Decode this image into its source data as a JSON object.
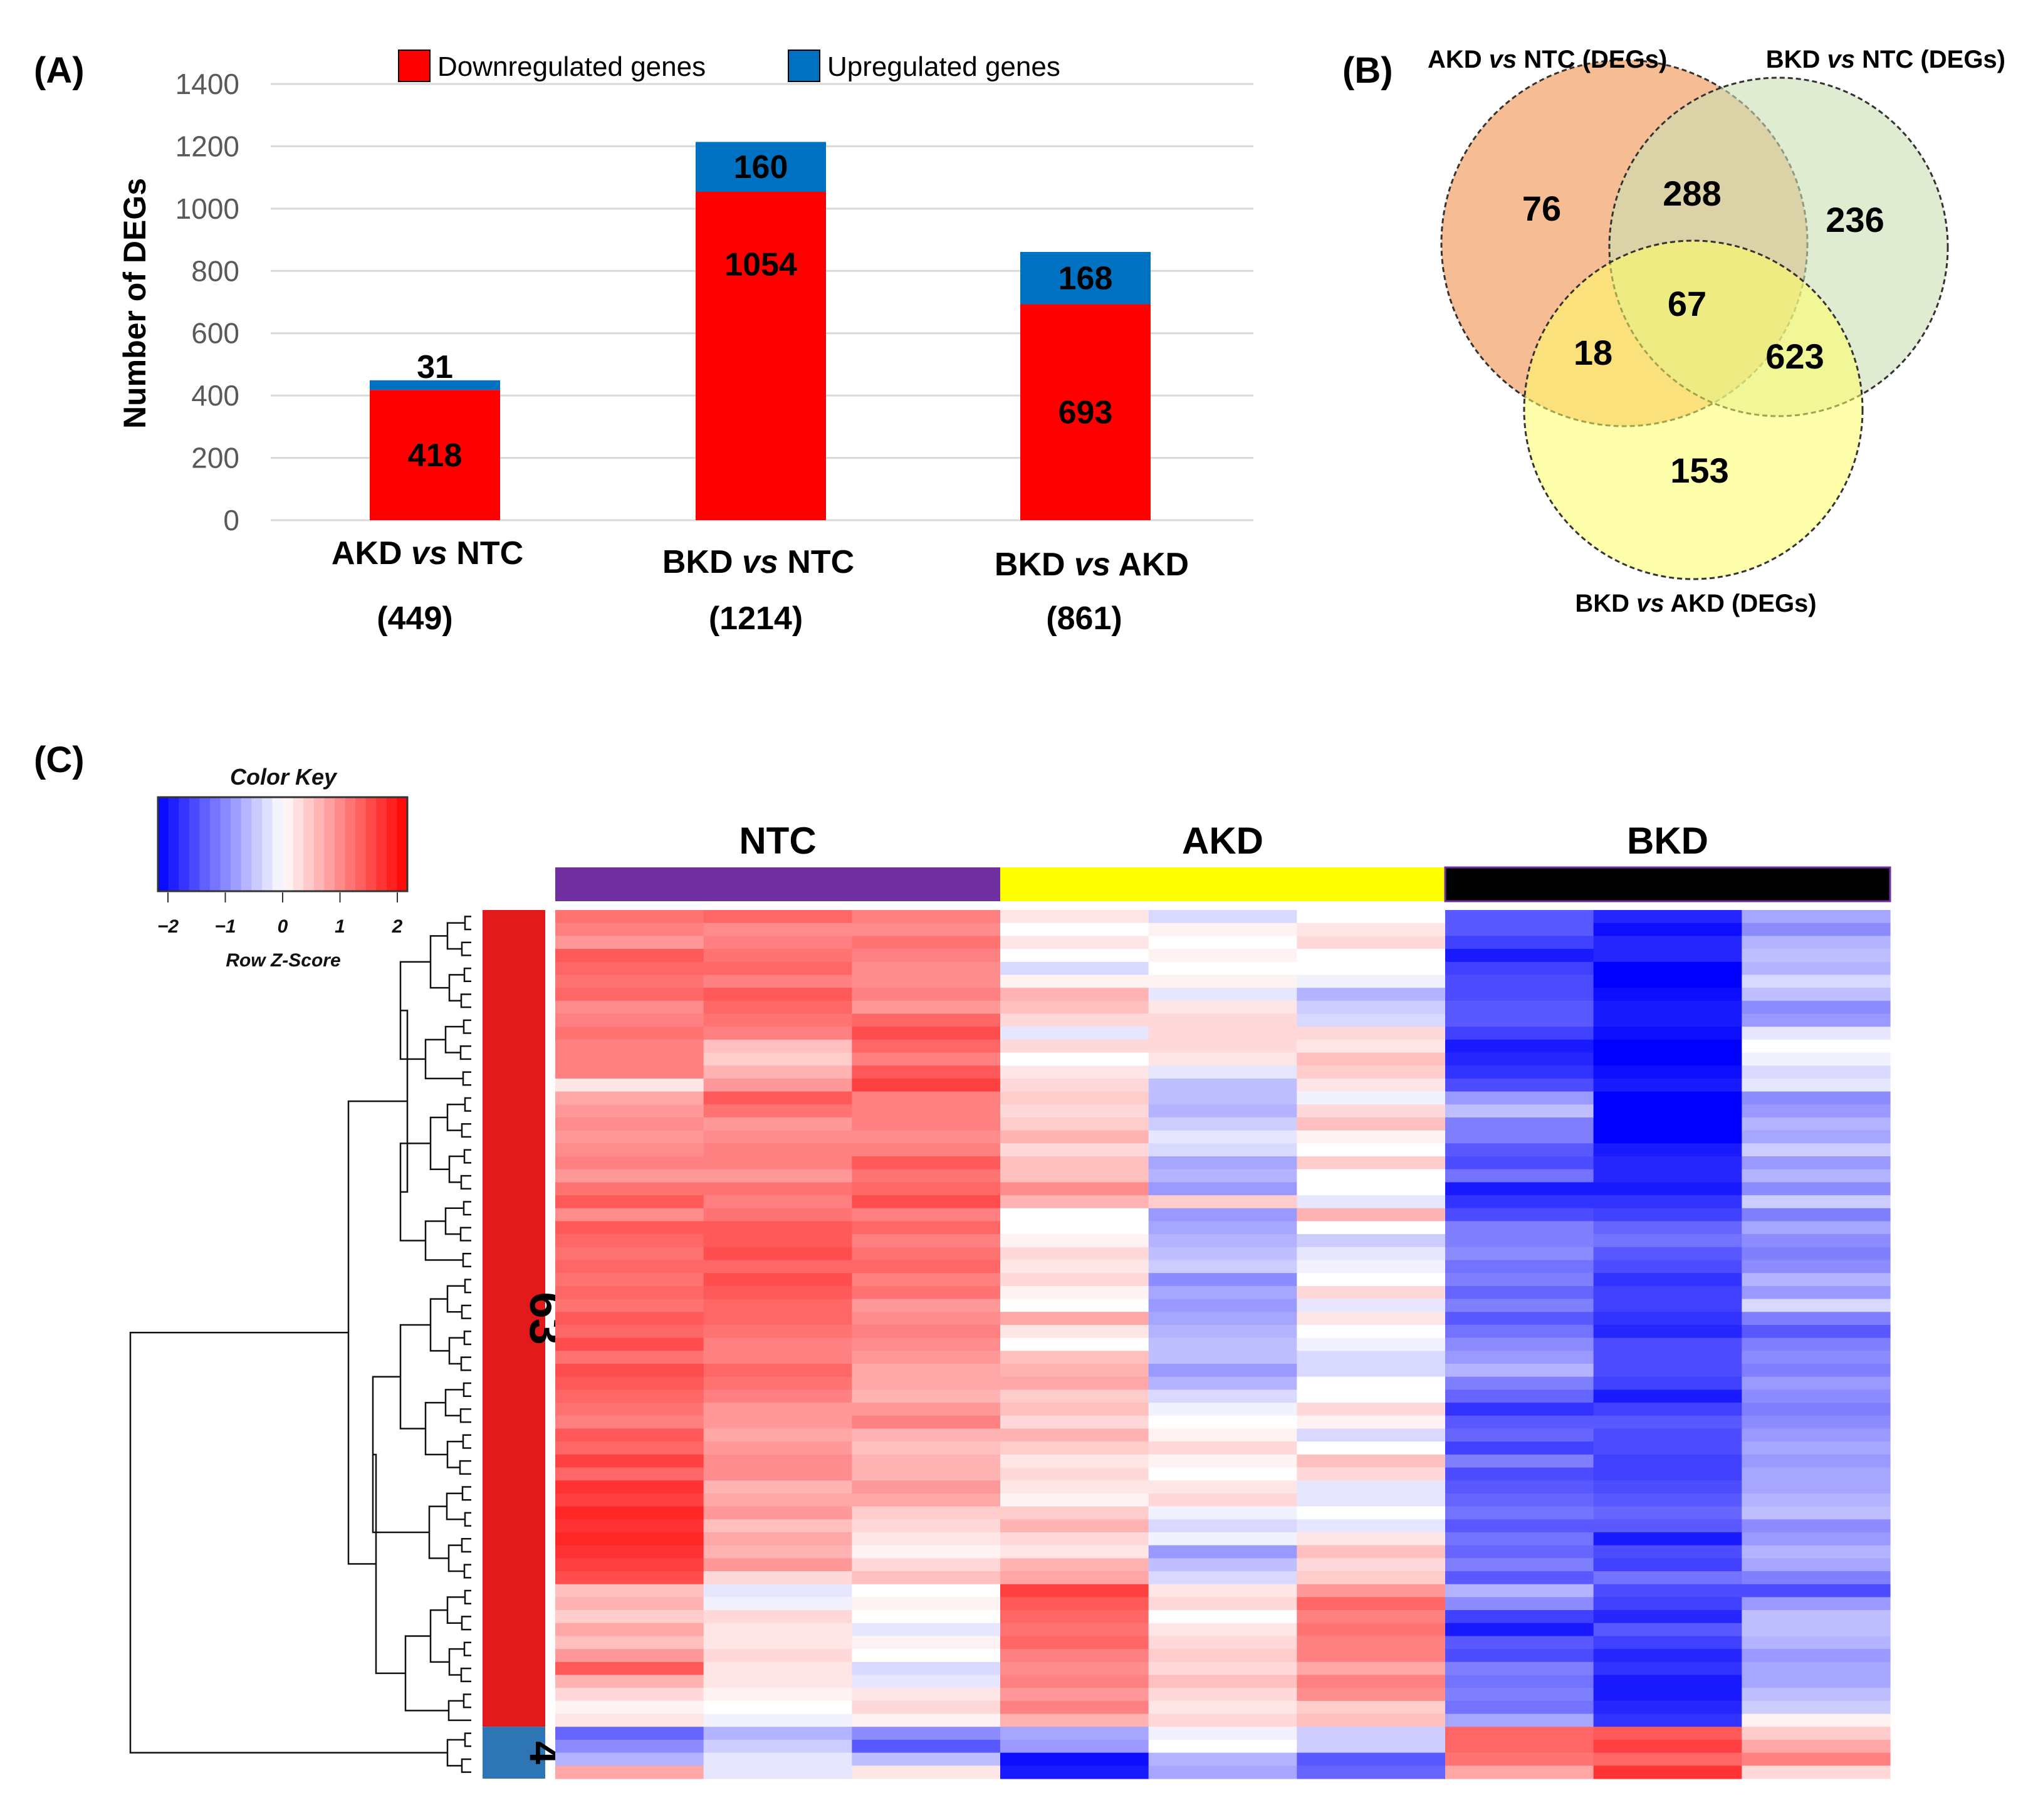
{
  "panels": {
    "a_label": "(A)",
    "b_label": "(B)",
    "c_label": "(C)"
  },
  "chart_data": [
    {
      "type": "bar",
      "stacked": true,
      "title": "",
      "xlabel": "",
      "ylabel": "Number of DEGs",
      "ylim": [
        0,
        1400
      ],
      "yticks": [
        0,
        200,
        400,
        600,
        800,
        1000,
        1200,
        1400
      ],
      "grid": true,
      "legend_position": "top",
      "categories": [
        {
          "pre": "AKD ",
          "mid": "vs",
          "post": " NTC",
          "total_label": "(449)",
          "total": 449
        },
        {
          "pre": "BKD ",
          "mid": "vs",
          "post": " NTC",
          "total_label": "(1214)",
          "total": 1214
        },
        {
          "pre": "BKD ",
          "mid": "vs",
          "post": " AKD",
          "total_label": "(861)",
          "total": 861
        }
      ],
      "series": [
        {
          "name": "Downregulated genes",
          "color": "#ff0000",
          "values": [
            418,
            1054,
            693
          ]
        },
        {
          "name": "Upregulated genes",
          "color": "#0070c0",
          "values": [
            31,
            160,
            168
          ]
        }
      ]
    },
    {
      "type": "venn",
      "sets": [
        {
          "pre": "AKD ",
          "mid": "vs",
          "post": " NTC (DEGs)",
          "color": "#f4b183"
        },
        {
          "pre": "BKD ",
          "mid": "vs",
          "post": " NTC (DEGs)",
          "color": "#c9e0b4"
        },
        {
          "pre": "BKD ",
          "mid": "vs",
          "post": " AKD (DEGs)",
          "color": "#ffff66"
        }
      ],
      "regions": {
        "a_only": "76",
        "ab": "288",
        "b_only": "236",
        "abc": "67",
        "ac": "18",
        "bc": "623",
        "c_only": "153"
      }
    },
    {
      "type": "heatmap",
      "color_key": {
        "title": "Color Key",
        "label": "Row Z-Score",
        "ticks": [
          "−2",
          "−1",
          "0",
          "1",
          "2"
        ],
        "low_color": "#0000ff",
        "mid_color": "#ffffff",
        "high_color": "#ff0000"
      },
      "groups": [
        {
          "name": "NTC",
          "color": "#7030a0"
        },
        {
          "name": "AKD",
          "color": "#ffff00"
        },
        {
          "name": "BKD",
          "color": "#000000"
        }
      ],
      "clusters": [
        {
          "label": "63",
          "color": "#e31a1c",
          "rows": 63
        },
        {
          "label": "4",
          "color": "#2e75b6",
          "rows": 4
        }
      ],
      "columns": 9,
      "row_zscores": [
        [
          1.1,
          1.2,
          1.0,
          0.2,
          -0.3,
          0.0,
          -1.3,
          -1.7,
          -0.7
        ],
        [
          1.0,
          0.9,
          0.9,
          0.0,
          0.1,
          0.2,
          -1.3,
          -1.9,
          -0.9
        ],
        [
          0.8,
          1.0,
          1.1,
          0.2,
          0.0,
          0.3,
          -1.5,
          -1.7,
          -0.6
        ],
        [
          1.3,
          1.1,
          1.0,
          0.0,
          0.1,
          0.0,
          -1.8,
          -1.7,
          -0.5
        ],
        [
          1.2,
          1.2,
          0.9,
          -0.3,
          0.0,
          0.0,
          -1.5,
          -2.0,
          -0.6
        ],
        [
          1.1,
          1.0,
          0.9,
          0.1,
          0.1,
          -0.1,
          -1.4,
          -2.0,
          -0.3
        ],
        [
          1.2,
          1.3,
          1.0,
          0.6,
          -0.2,
          -0.6,
          -1.4,
          -1.9,
          -0.5
        ],
        [
          0.9,
          1.2,
          0.8,
          0.5,
          0.2,
          -0.4,
          -1.3,
          -1.8,
          -0.9
        ],
        [
          1.0,
          1.1,
          1.2,
          0.3,
          0.3,
          -0.3,
          -1.3,
          -1.8,
          -0.8
        ],
        [
          1.1,
          1.0,
          1.4,
          -0.2,
          0.3,
          0.3,
          -1.5,
          -1.9,
          -0.2
        ],
        [
          1.0,
          0.5,
          1.2,
          0.3,
          0.3,
          0.2,
          -1.8,
          -2.0,
          0.0
        ],
        [
          1.0,
          0.4,
          1.0,
          0.0,
          0.2,
          0.5,
          -1.7,
          -2.0,
          -0.1
        ],
        [
          1.0,
          0.6,
          1.3,
          0.2,
          -0.2,
          0.4,
          -1.6,
          -1.9,
          -0.3
        ],
        [
          0.2,
          0.8,
          1.5,
          0.3,
          -0.5,
          0.2,
          -1.4,
          -1.8,
          -0.2
        ],
        [
          0.7,
          1.3,
          1.0,
          0.4,
          -0.5,
          -0.1,
          -0.8,
          -2.0,
          -0.9
        ],
        [
          0.8,
          1.1,
          1.0,
          0.3,
          -0.6,
          0.3,
          -0.5,
          -2.0,
          -0.8
        ],
        [
          0.9,
          0.8,
          1.0,
          0.4,
          -0.4,
          0.5,
          -1.0,
          -2.0,
          -0.6
        ],
        [
          0.8,
          0.9,
          0.9,
          0.6,
          -0.2,
          0.1,
          -1.0,
          -2.0,
          -0.7
        ],
        [
          0.9,
          1.0,
          1.0,
          0.3,
          -0.3,
          0.0,
          -1.3,
          -1.8,
          -0.4
        ],
        [
          1.0,
          1.0,
          1.3,
          0.5,
          -0.7,
          0.4,
          -1.4,
          -1.7,
          -0.8
        ],
        [
          0.8,
          0.8,
          1.1,
          0.5,
          -0.6,
          0.0,
          -1.1,
          -1.7,
          -0.6
        ],
        [
          1.1,
          1.1,
          1.2,
          0.9,
          -0.8,
          0.0,
          -1.8,
          -1.8,
          -0.9
        ],
        [
          1.3,
          1.0,
          1.4,
          0.6,
          0.4,
          -0.2,
          -1.6,
          -1.6,
          -0.4
        ],
        [
          0.9,
          1.1,
          1.0,
          0.0,
          -0.8,
          0.6,
          -1.4,
          -1.5,
          -1.0
        ],
        [
          1.3,
          1.3,
          1.2,
          0.0,
          -0.7,
          0.0,
          -1.0,
          -1.2,
          -0.7
        ],
        [
          1.2,
          1.3,
          1.0,
          0.1,
          -0.6,
          -0.4,
          -1.0,
          -1.1,
          -0.9
        ],
        [
          1.1,
          1.4,
          1.1,
          0.3,
          -0.5,
          -0.2,
          -0.9,
          -1.3,
          -1.0
        ],
        [
          1.2,
          1.2,
          1.2,
          0.2,
          -0.4,
          -0.1,
          -1.1,
          -1.4,
          -0.9
        ],
        [
          1.1,
          1.4,
          1.0,
          0.3,
          -0.9,
          0.0,
          -1.0,
          -1.6,
          -0.6
        ],
        [
          1.2,
          1.3,
          1.1,
          0.1,
          -0.7,
          0.3,
          -1.2,
          -1.5,
          -0.8
        ],
        [
          1.1,
          1.2,
          0.8,
          0.0,
          -0.8,
          -0.2,
          -1.0,
          -1.5,
          -0.3
        ],
        [
          1.3,
          1.2,
          0.9,
          0.7,
          -0.7,
          0.2,
          -1.3,
          -1.6,
          -1.0
        ],
        [
          1.2,
          1.1,
          1.0,
          0.2,
          -0.6,
          0.0,
          -1.1,
          -1.7,
          -1.3
        ],
        [
          1.4,
          1.0,
          0.9,
          0.0,
          -0.5,
          -0.1,
          -0.9,
          -1.4,
          -1.0
        ],
        [
          1.1,
          1.0,
          0.8,
          0.5,
          -0.5,
          -0.3,
          -0.8,
          -1.4,
          -0.9
        ],
        [
          1.4,
          1.2,
          0.7,
          0.6,
          -0.8,
          -0.3,
          -0.6,
          -1.4,
          -1.0
        ],
        [
          1.3,
          1.1,
          0.7,
          0.7,
          -0.6,
          0.0,
          -1.0,
          -1.5,
          -0.8
        ],
        [
          1.2,
          1.0,
          0.6,
          0.4,
          -0.3,
          0.0,
          -1.2,
          -1.8,
          -0.9
        ],
        [
          1.1,
          0.8,
          0.8,
          0.5,
          -0.1,
          0.3,
          -1.6,
          -1.5,
          -1.0
        ],
        [
          1.0,
          0.8,
          1.0,
          0.3,
          0.0,
          0.1,
          -1.3,
          -1.3,
          -0.9
        ],
        [
          1.3,
          0.7,
          0.6,
          0.6,
          0.1,
          -0.3,
          -1.2,
          -1.4,
          -0.8
        ],
        [
          1.2,
          0.8,
          0.5,
          0.4,
          0.3,
          0.0,
          -1.5,
          -1.4,
          -0.7
        ],
        [
          1.5,
          0.9,
          0.6,
          0.2,
          0.1,
          0.5,
          -1.0,
          -1.5,
          -0.8
        ],
        [
          1.2,
          0.9,
          0.6,
          0.3,
          0.0,
          0.3,
          -1.4,
          -1.5,
          -0.7
        ],
        [
          1.6,
          0.6,
          0.8,
          0.2,
          0.2,
          -0.2,
          -1.3,
          -1.4,
          -0.7
        ],
        [
          1.5,
          0.7,
          0.7,
          0.1,
          0.3,
          -0.2,
          -1.2,
          -1.3,
          -0.6
        ],
        [
          1.7,
          0.8,
          0.4,
          0.4,
          -0.1,
          0.0,
          -1.1,
          -1.2,
          -0.5
        ],
        [
          1.6,
          0.5,
          0.3,
          0.6,
          -0.3,
          -0.2,
          -1.3,
          -1.3,
          -0.9
        ],
        [
          1.7,
          0.7,
          0.2,
          0.3,
          -0.1,
          0.2,
          -1.1,
          -1.8,
          -0.8
        ],
        [
          1.6,
          0.6,
          0.1,
          0.2,
          -0.8,
          0.5,
          -1.2,
          -1.4,
          -0.6
        ],
        [
          1.5,
          0.8,
          0.3,
          0.6,
          -0.5,
          0.3,
          -1.0,
          -1.5,
          -0.7
        ],
        [
          1.4,
          0.3,
          0.5,
          0.7,
          -0.3,
          0.4,
          -1.3,
          -1.1,
          -1.0
        ],
        [
          0.5,
          -0.2,
          0.0,
          1.5,
          0.2,
          0.8,
          -0.6,
          -1.4,
          -1.4
        ],
        [
          0.6,
          -0.1,
          0.1,
          1.3,
          0.3,
          1.2,
          -0.9,
          -1.5,
          -0.8
        ],
        [
          0.4,
          0.3,
          0.0,
          1.2,
          0.0,
          1.0,
          -1.5,
          -1.7,
          -0.5
        ],
        [
          0.7,
          0.2,
          -0.2,
          1.1,
          0.2,
          1.1,
          -1.8,
          -1.3,
          -0.5
        ],
        [
          0.5,
          0.2,
          0.1,
          1.2,
          0.3,
          1.0,
          -1.3,
          -1.5,
          -0.6
        ],
        [
          0.8,
          0.3,
          0.0,
          1.0,
          0.4,
          1.0,
          -1.4,
          -1.7,
          -0.8
        ],
        [
          1.3,
          0.2,
          -0.3,
          0.9,
          0.3,
          0.7,
          -1.0,
          -1.6,
          -0.7
        ],
        [
          0.6,
          0.2,
          -0.2,
          1.0,
          0.5,
          1.0,
          -1.1,
          -1.8,
          -0.7
        ],
        [
          0.3,
          0.1,
          0.2,
          0.8,
          0.3,
          0.9,
          -1.0,
          -1.8,
          -0.5
        ],
        [
          0.1,
          0.0,
          0.3,
          1.0,
          0.2,
          0.4,
          -1.1,
          -1.7,
          -0.4
        ],
        [
          0.2,
          -0.1,
          0.1,
          0.6,
          0.3,
          0.5,
          -0.7,
          -1.6,
          0.1
        ],
        [
          -1.2,
          -0.6,
          -0.9,
          -0.7,
          -0.1,
          -0.4,
          1.2,
          1.3,
          0.4
        ],
        [
          -0.9,
          -0.4,
          -1.3,
          -0.8,
          0.0,
          -0.4,
          1.2,
          1.5,
          0.7
        ],
        [
          -0.6,
          -0.2,
          -0.5,
          -1.9,
          -0.6,
          -1.3,
          1.1,
          1.2,
          1.0
        ],
        [
          0.7,
          -0.2,
          0.2,
          -1.8,
          -0.7,
          -1.2,
          0.7,
          1.6,
          0.3
        ]
      ]
    }
  ]
}
